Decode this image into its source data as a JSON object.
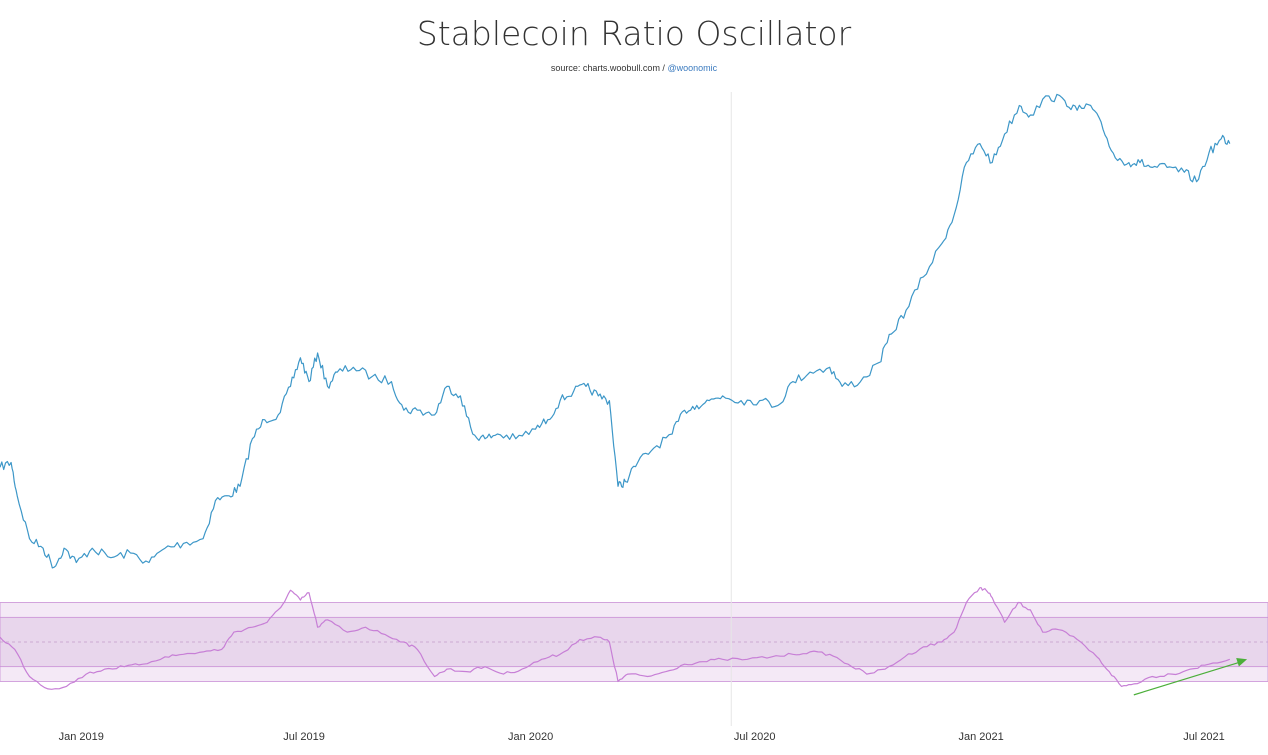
{
  "title": "Stablecoin Ratio Oscillator",
  "subtitle": {
    "source": "source: charts.woobull.com / ",
    "credit": "@woonomic"
  },
  "colors": {
    "main_line": "#3d97c8",
    "oscillator_line": "#c77fd6",
    "band_outer": "#f4e9f6",
    "band_inner": "#e8d6ec",
    "band_border": "#c98fd6",
    "midline": "#c29ac9",
    "arrow": "#4caf3a",
    "crosshair": "#e6e6e6"
  },
  "chart_data": [
    {
      "type": "line",
      "name": "main",
      "x_range": [
        "2018-10-27",
        "2021-08-22"
      ],
      "y_range": [
        0,
        100
      ],
      "points": [
        [
          "2018-10-27",
          22
        ],
        [
          "2018-11-05",
          23
        ],
        [
          "2018-11-10",
          16
        ],
        [
          "2018-11-20",
          7
        ],
        [
          "2018-12-01",
          5
        ],
        [
          "2018-12-10",
          1
        ],
        [
          "2018-12-18",
          5
        ],
        [
          "2018-12-28",
          2
        ],
        [
          "2019-01-10",
          5
        ],
        [
          "2019-01-25",
          3
        ],
        [
          "2019-02-10",
          4
        ],
        [
          "2019-02-25",
          2
        ],
        [
          "2019-03-10",
          5
        ],
        [
          "2019-03-25",
          6
        ],
        [
          "2019-04-10",
          7
        ],
        [
          "2019-04-20",
          15
        ],
        [
          "2019-05-01",
          16
        ],
        [
          "2019-05-10",
          18
        ],
        [
          "2019-05-20",
          28
        ],
        [
          "2019-05-30",
          32
        ],
        [
          "2019-06-10",
          33
        ],
        [
          "2019-06-20",
          39
        ],
        [
          "2019-06-28",
          45
        ],
        [
          "2019-07-05",
          40
        ],
        [
          "2019-07-12",
          46
        ],
        [
          "2019-07-20",
          39
        ],
        [
          "2019-07-28",
          42
        ],
        [
          "2019-08-10",
          43
        ],
        [
          "2019-08-25",
          41
        ],
        [
          "2019-09-10",
          40
        ],
        [
          "2019-09-20",
          34
        ],
        [
          "2019-10-01",
          34
        ],
        [
          "2019-10-15",
          33
        ],
        [
          "2019-10-25",
          39
        ],
        [
          "2019-11-05",
          37
        ],
        [
          "2019-11-15",
          29
        ],
        [
          "2019-11-25",
          28
        ],
        [
          "2019-12-05",
          29
        ],
        [
          "2019-12-20",
          28
        ],
        [
          "2020-01-05",
          30
        ],
        [
          "2020-01-15",
          32
        ],
        [
          "2020-01-25",
          36
        ],
        [
          "2020-02-05",
          38
        ],
        [
          "2020-02-15",
          39
        ],
        [
          "2020-02-25",
          37
        ],
        [
          "2020-03-05",
          36
        ],
        [
          "2020-03-12",
          18
        ],
        [
          "2020-03-18",
          19
        ],
        [
          "2020-03-28",
          23
        ],
        [
          "2020-04-10",
          26
        ],
        [
          "2020-04-25",
          29
        ],
        [
          "2020-05-05",
          34
        ],
        [
          "2020-05-15",
          35
        ],
        [
          "2020-05-25",
          36
        ],
        [
          "2020-06-05",
          37
        ],
        [
          "2020-06-20",
          36
        ],
        [
          "2020-07-05",
          36
        ],
        [
          "2020-07-20",
          35
        ],
        [
          "2020-08-01",
          40
        ],
        [
          "2020-08-15",
          42
        ],
        [
          "2020-08-31",
          43
        ],
        [
          "2020-09-10",
          39
        ],
        [
          "2020-09-25",
          40
        ],
        [
          "2020-10-10",
          44
        ],
        [
          "2020-10-20",
          50
        ],
        [
          "2020-11-01",
          55
        ],
        [
          "2020-11-15",
          62
        ],
        [
          "2020-11-30",
          69
        ],
        [
          "2020-12-10",
          75
        ],
        [
          "2020-12-20",
          86
        ],
        [
          "2020-12-31",
          90
        ],
        [
          "2021-01-10",
          86
        ],
        [
          "2021-01-20",
          92
        ],
        [
          "2021-02-01",
          98
        ],
        [
          "2021-02-10",
          96
        ],
        [
          "2021-02-25",
          100
        ],
        [
          "2021-03-10",
          99
        ],
        [
          "2021-03-20",
          97
        ],
        [
          "2021-03-31",
          98
        ],
        [
          "2021-04-10",
          93
        ],
        [
          "2021-04-20",
          87
        ],
        [
          "2021-05-01",
          86
        ],
        [
          "2021-05-10",
          86
        ],
        [
          "2021-05-20",
          85
        ],
        [
          "2021-06-01",
          85
        ],
        [
          "2021-06-15",
          84
        ],
        [
          "2021-06-25",
          82
        ],
        [
          "2021-07-05",
          88
        ],
        [
          "2021-07-15",
          91
        ],
        [
          "2021-07-22",
          90
        ]
      ]
    },
    {
      "type": "line",
      "name": "oscillator",
      "x_range": [
        "2018-10-27",
        "2021-08-22"
      ],
      "y_range": [
        -3,
        3
      ],
      "bands": {
        "outer": [
          -1.6,
          1.6
        ],
        "inner": [
          -1,
          1
        ],
        "mid": 0
      },
      "points": [
        [
          "2018-10-27",
          0.2
        ],
        [
          "2018-11-08",
          -0.3
        ],
        [
          "2018-11-20",
          -1.4
        ],
        [
          "2018-12-05",
          -1.9
        ],
        [
          "2018-12-20",
          -1.8
        ],
        [
          "2019-01-05",
          -1.3
        ],
        [
          "2019-01-20",
          -1.1
        ],
        [
          "2019-02-05",
          -1.0
        ],
        [
          "2019-02-20",
          -0.9
        ],
        [
          "2019-03-10",
          -0.6
        ],
        [
          "2019-03-25",
          -0.5
        ],
        [
          "2019-04-10",
          -0.4
        ],
        [
          "2019-04-25",
          -0.3
        ],
        [
          "2019-05-05",
          0.4
        ],
        [
          "2019-05-20",
          0.6
        ],
        [
          "2019-06-01",
          0.8
        ],
        [
          "2019-06-12",
          1.4
        ],
        [
          "2019-06-20",
          2.1
        ],
        [
          "2019-06-28",
          1.7
        ],
        [
          "2019-07-05",
          2.0
        ],
        [
          "2019-07-12",
          0.6
        ],
        [
          "2019-07-20",
          0.9
        ],
        [
          "2019-08-05",
          0.4
        ],
        [
          "2019-08-20",
          0.6
        ],
        [
          "2019-09-05",
          0.3
        ],
        [
          "2019-09-20",
          0.0
        ],
        [
          "2019-10-01",
          -0.3
        ],
        [
          "2019-10-15",
          -1.4
        ],
        [
          "2019-10-25",
          -1.1
        ],
        [
          "2019-11-10",
          -1.2
        ],
        [
          "2019-11-25",
          -1.0
        ],
        [
          "2019-12-10",
          -1.3
        ],
        [
          "2019-12-25",
          -1.1
        ],
        [
          "2020-01-10",
          -0.7
        ],
        [
          "2020-01-25",
          -0.5
        ],
        [
          "2020-02-10",
          0.1
        ],
        [
          "2020-02-25",
          0.2
        ],
        [
          "2020-03-05",
          0.0
        ],
        [
          "2020-03-12",
          -1.6
        ],
        [
          "2020-03-20",
          -1.3
        ],
        [
          "2020-04-05",
          -1.4
        ],
        [
          "2020-04-20",
          -1.2
        ],
        [
          "2020-05-05",
          -0.9
        ],
        [
          "2020-05-20",
          -0.8
        ],
        [
          "2020-06-05",
          -0.7
        ],
        [
          "2020-06-25",
          -0.7
        ],
        [
          "2020-07-15",
          -0.6
        ],
        [
          "2020-08-01",
          -0.5
        ],
        [
          "2020-08-15",
          -0.4
        ],
        [
          "2020-08-31",
          -0.5
        ],
        [
          "2020-09-15",
          -0.9
        ],
        [
          "2020-09-30",
          -1.3
        ],
        [
          "2020-10-15",
          -1.1
        ],
        [
          "2020-10-31",
          -0.6
        ],
        [
          "2020-11-15",
          -0.2
        ],
        [
          "2020-11-30",
          0.0
        ],
        [
          "2020-12-10",
          0.4
        ],
        [
          "2020-12-20",
          1.6
        ],
        [
          "2020-12-31",
          2.2
        ],
        [
          "2021-01-05",
          2.1
        ],
        [
          "2021-01-10",
          1.8
        ],
        [
          "2021-01-20",
          0.8
        ],
        [
          "2021-01-31",
          1.6
        ],
        [
          "2021-02-10",
          1.3
        ],
        [
          "2021-02-20",
          0.4
        ],
        [
          "2021-03-05",
          0.5
        ],
        [
          "2021-03-20",
          0.1
        ],
        [
          "2021-04-05",
          -0.6
        ],
        [
          "2021-04-15",
          -1.2
        ],
        [
          "2021-04-25",
          -1.8
        ],
        [
          "2021-05-05",
          -1.7
        ],
        [
          "2021-05-20",
          -1.4
        ],
        [
          "2021-06-05",
          -1.3
        ],
        [
          "2021-06-20",
          -1.1
        ],
        [
          "2021-07-05",
          -0.9
        ],
        [
          "2021-07-22",
          -0.7
        ]
      ],
      "annotation": {
        "type": "arrow",
        "from": [
          "2021-05-05",
          -1.9
        ],
        "to": [
          "2021-08-05",
          -0.7
        ]
      }
    }
  ],
  "x_axis": {
    "ticks": [
      {
        "label": "Jan 2019",
        "date": "2019-01-01"
      },
      {
        "label": "Jul 2019",
        "date": "2019-07-01"
      },
      {
        "label": "Jan 2020",
        "date": "2020-01-01"
      },
      {
        "label": "Jul 2020",
        "date": "2020-07-01"
      },
      {
        "label": "Jan 2021",
        "date": "2021-01-01"
      },
      {
        "label": "Jul 2021",
        "date": "2021-07-01"
      }
    ]
  },
  "crosshair_date": "2020-06-12"
}
